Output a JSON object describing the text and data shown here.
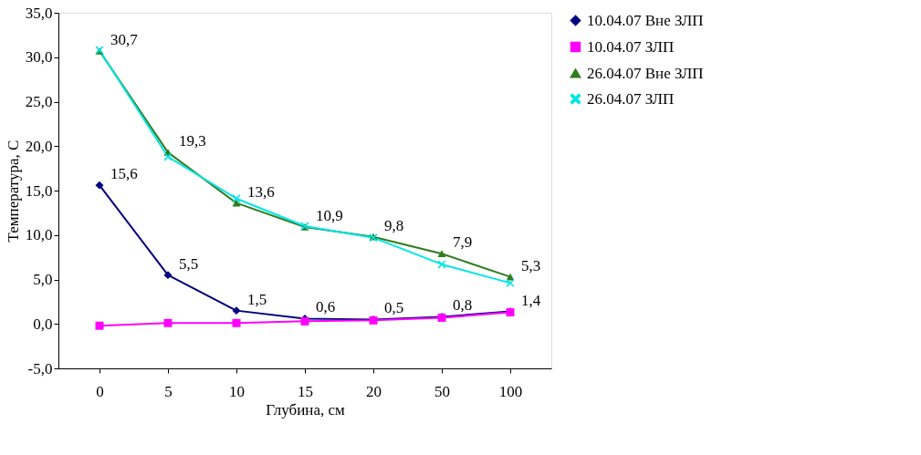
{
  "chart_data": {
    "type": "line",
    "xlabel": "Глубина, см",
    "ylabel": "Температура, С",
    "categories": [
      "0",
      "5",
      "10",
      "15",
      "20",
      "50",
      "100"
    ],
    "ylim": [
      -5,
      35
    ],
    "yticks": [
      {
        "value": -5,
        "label": "-5,0"
      },
      {
        "value": 0,
        "label": "0,0"
      },
      {
        "value": 5,
        "label": "5,0"
      },
      {
        "value": 10,
        "label": "10,0"
      },
      {
        "value": 15,
        "label": "15,0"
      },
      {
        "value": 20,
        "label": "20,0"
      },
      {
        "value": 25,
        "label": "25,0"
      },
      {
        "value": 30,
        "label": "30,0"
      },
      {
        "value": 35,
        "label": "35,0"
      }
    ],
    "grid": false,
    "legend": "right",
    "line_style": "solid",
    "series": [
      {
        "name": "10.04.07 Вне ЗЛП",
        "color": "#000080",
        "marker": "diamond",
        "values": [
          15.6,
          5.5,
          1.5,
          0.6,
          0.5,
          0.8,
          1.4
        ],
        "value_labels": [
          "15,6",
          "5,5",
          "1,5",
          "0,6",
          "0,5",
          "0,8",
          "1,4"
        ]
      },
      {
        "name": "10.04.07 ЗЛП",
        "color": "#ff00ff",
        "marker": "square",
        "values": [
          -0.2,
          0.1,
          0.1,
          0.3,
          0.4,
          0.7,
          1.3
        ]
      },
      {
        "name": "26.04.07 Вне ЗЛП",
        "color": "#2e7d1e",
        "marker": "triangle",
        "values": [
          30.7,
          19.3,
          13.6,
          10.9,
          9.8,
          7.9,
          5.3
        ],
        "value_labels": [
          "30,7",
          "19,3",
          "13,6",
          "10,9",
          "9,8",
          "7,9",
          "5,3"
        ]
      },
      {
        "name": "26.04.07 ЗЛП",
        "color": "#00e5e5",
        "marker": "cross",
        "values": [
          30.8,
          18.8,
          14.1,
          11.0,
          9.7,
          6.7,
          4.6
        ]
      }
    ]
  }
}
